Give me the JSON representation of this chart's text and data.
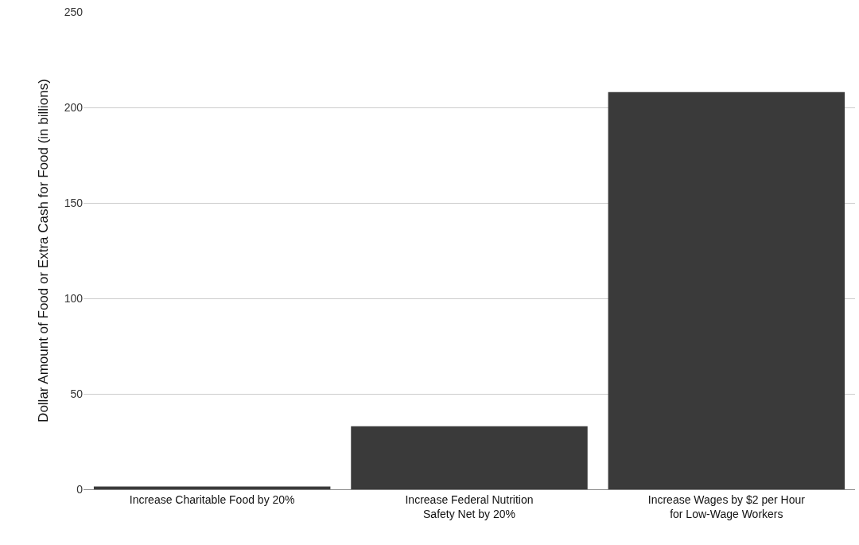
{
  "chart_data": {
    "type": "bar",
    "ylabel": "Dollar Amount of Food or Extra Cash for Food (in billions)",
    "categories": [
      "Increase Charitable Food by 20%",
      "Increase Federal Nutrition\nSafety Net by 20%",
      "Increase Wages by $2 per Hour\nfor Low-Wage Workers"
    ],
    "values": [
      1.5,
      33,
      208
    ],
    "color": "#3a3a3a",
    "ylim": [
      0,
      250
    ],
    "yticks": [
      0,
      50,
      100,
      150,
      200,
      250
    ],
    "grid": "y"
  }
}
